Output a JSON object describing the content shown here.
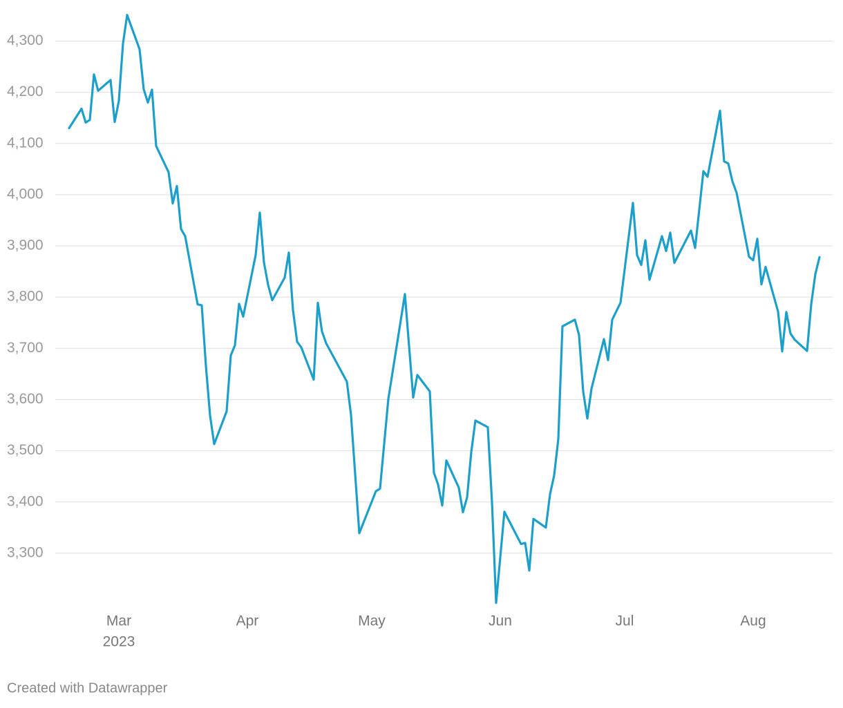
{
  "chart_data": {
    "type": "line",
    "footer": "Created with Datawrapper",
    "x": [
      -12,
      -9,
      -8,
      -7,
      -6,
      -5,
      -2,
      -1,
      0,
      1,
      2,
      5,
      6,
      7,
      8,
      9,
      12,
      13,
      14,
      15,
      16,
      19,
      20,
      21,
      22,
      23,
      26,
      27,
      28,
      29,
      30,
      33,
      34,
      35,
      36,
      37,
      40,
      41,
      42,
      43,
      44,
      47,
      48,
      49,
      50,
      55,
      56,
      58,
      62,
      63,
      65,
      69,
      71,
      72,
      75,
      76,
      77,
      78,
      79,
      82,
      83,
      84,
      85,
      86,
      89,
      90,
      91,
      93,
      97,
      98,
      99,
      100,
      103,
      104,
      105,
      106,
      107,
      110,
      111,
      112,
      113,
      114,
      117,
      118,
      119,
      121,
      124,
      125,
      126,
      127,
      128,
      131,
      132,
      133,
      134,
      138,
      139,
      141,
      142,
      145,
      146,
      147,
      148,
      149,
      152,
      153,
      154,
      155,
      156,
      159,
      160,
      161,
      162,
      163,
      166,
      167,
      168,
      169
    ],
    "series": [
      {
        "color": "#1d9fcb",
        "values": [
          4130,
          4168,
          4141,
          4146,
          4235,
          4203,
          4224,
          4142,
          4183,
          4295,
          4351,
          4284,
          4206,
          4180,
          4205,
          4095,
          4044,
          3983,
          4017,
          3933,
          3919,
          3786,
          3784,
          3666,
          3569,
          3513,
          3577,
          3686,
          3706,
          3787,
          3762,
          3882,
          3965,
          3868,
          3824,
          3794,
          3838,
          3887,
          3775,
          3713,
          3702,
          3639,
          3789,
          3733,
          3710,
          3635,
          3570,
          3339,
          3421,
          3426,
          3601,
          3806,
          3604,
          3648,
          3616,
          3457,
          3434,
          3393,
          3481,
          3428,
          3380,
          3409,
          3497,
          3559,
          3546,
          3400,
          3203,
          3381,
          3318,
          3320,
          3266,
          3367,
          3350,
          3415,
          3452,
          3523,
          3743,
          3756,
          3726,
          3616,
          3563,
          3621,
          3718,
          3677,
          3756,
          3789,
          3984,
          3882,
          3863,
          3911,
          3834,
          3919,
          3890,
          3926,
          3867,
          3930,
          3896,
          4046,
          4035,
          4164,
          4065,
          4061,
          4026,
          4004,
          3879,
          3872,
          3914,
          3825,
          3859,
          3772,
          3694,
          3771,
          3729,
          3717,
          3695,
          3786,
          3845,
          3878
        ]
      }
    ],
    "xlim": [
      -15.33,
      172.17
    ],
    "xticks": [
      {
        "value": 0,
        "label": "Mar"
      },
      {
        "value": 31,
        "label": "Apr"
      },
      {
        "value": 61,
        "label": "May"
      },
      {
        "value": 92,
        "label": "Jun"
      },
      {
        "value": 122,
        "label": "Jul"
      },
      {
        "value": 153,
        "label": "Aug"
      }
    ],
    "year_label": "2023",
    "ylim": [
      3200,
      4360
    ],
    "yticks": [
      {
        "value": 3300,
        "label": "3,300"
      },
      {
        "value": 3400,
        "label": "3,400"
      },
      {
        "value": 3500,
        "label": "3,500"
      },
      {
        "value": 3600,
        "label": "3,600"
      },
      {
        "value": 3700,
        "label": "3,700"
      },
      {
        "value": 3800,
        "label": "3,800"
      },
      {
        "value": 3900,
        "label": "3,900"
      },
      {
        "value": 4000,
        "label": "4,000"
      },
      {
        "value": 4100,
        "label": "4,100"
      },
      {
        "value": 4200,
        "label": "4,200"
      },
      {
        "value": 4300,
        "label": "4,300"
      }
    ],
    "grid": true
  }
}
